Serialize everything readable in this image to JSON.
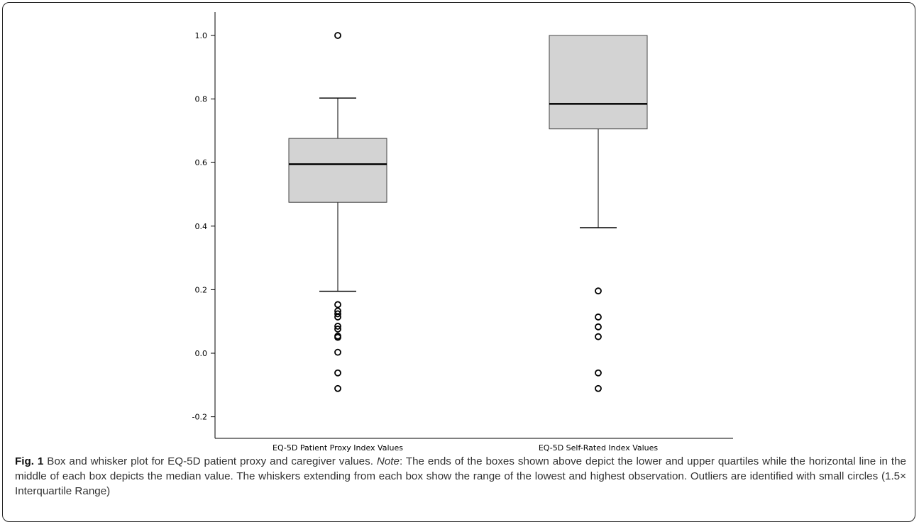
{
  "chart_data": {
    "type": "boxplot",
    "title": "",
    "xlabel": "",
    "ylabel": "",
    "ylim": [
      -0.27,
      1.08
    ],
    "yticks": [
      "-0.2",
      "0.0",
      "0.2",
      "0.4",
      "0.6",
      "0.8",
      "1.0"
    ],
    "ytick_values": [
      -0.2,
      0.0,
      0.2,
      0.4,
      0.6,
      0.8,
      1.0
    ],
    "grid": false,
    "categories": [
      "EQ-5D Patient Proxy Index Values",
      "EQ-5D Self-Rated Index Values"
    ],
    "series": [
      {
        "whisker_low": 0.195,
        "q1": 0.475,
        "median": 0.595,
        "q3": 0.676,
        "whisker_high": 0.803,
        "outliers": [
          1.0,
          0.153,
          0.133,
          0.124,
          0.114,
          0.085,
          0.076,
          0.054,
          0.05,
          0.003,
          -0.062,
          -0.111
        ]
      },
      {
        "whisker_low": 0.395,
        "q1": 0.706,
        "median": 0.785,
        "q3": 1.0,
        "whisker_high": 1.0,
        "outliers": [
          0.196,
          0.114,
          0.083,
          0.052,
          -0.062,
          -0.111
        ]
      }
    ],
    "box_fill": "#d3d3d3",
    "outlier_marker": "open-circle"
  },
  "caption": {
    "fig_label": "Fig. 1",
    "title_text": " Box and whisker plot for EQ-5D patient proxy and caregiver values. ",
    "note_label": "Note",
    "body_text": ": The ends of the boxes shown above depict the lower and upper quartiles while the horizontal line in the middle of each box depicts the median value. The whiskers extending from each box show the range of the lowest and highest observation. Outliers are identified with small circles (1.5× Interquartile Range)"
  }
}
